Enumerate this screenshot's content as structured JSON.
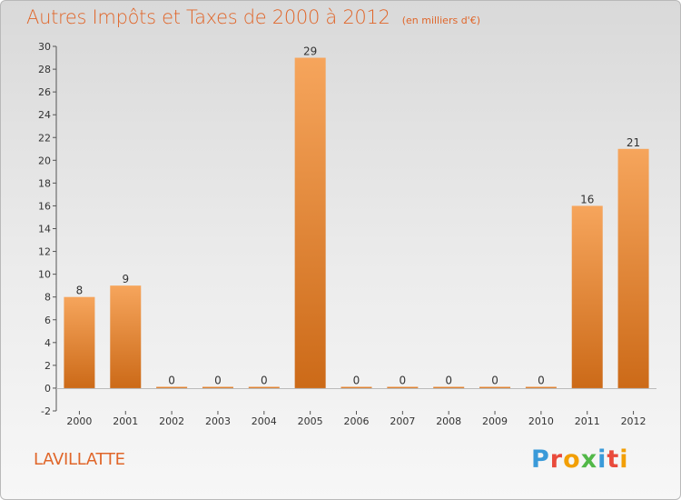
{
  "chart_data": {
    "type": "bar",
    "title": "Autres Impôts et Taxes de 2000 à 2012",
    "subtitle": "(en milliers d'€)",
    "categories": [
      "2000",
      "2001",
      "2002",
      "2003",
      "2004",
      "2005",
      "2006",
      "2007",
      "2008",
      "2009",
      "2010",
      "2011",
      "2012"
    ],
    "values": [
      8,
      9,
      0,
      0,
      0,
      29,
      0,
      0,
      0,
      0,
      0,
      16,
      21
    ],
    "ylim": [
      -2,
      30
    ],
    "yticks": [
      -2,
      0,
      2,
      4,
      6,
      8,
      10,
      12,
      14,
      16,
      18,
      20,
      22,
      24,
      26,
      28,
      30
    ],
    "xlabel": "",
    "ylabel": "",
    "grid": false,
    "bar_color": "#f0883a"
  },
  "footer": {
    "place": "LAVILLATTE",
    "brand": "Proxiti"
  },
  "colors": {
    "title": "#e0662a",
    "bar_light": "#f6a55c",
    "bar_dark": "#cc6a18"
  }
}
